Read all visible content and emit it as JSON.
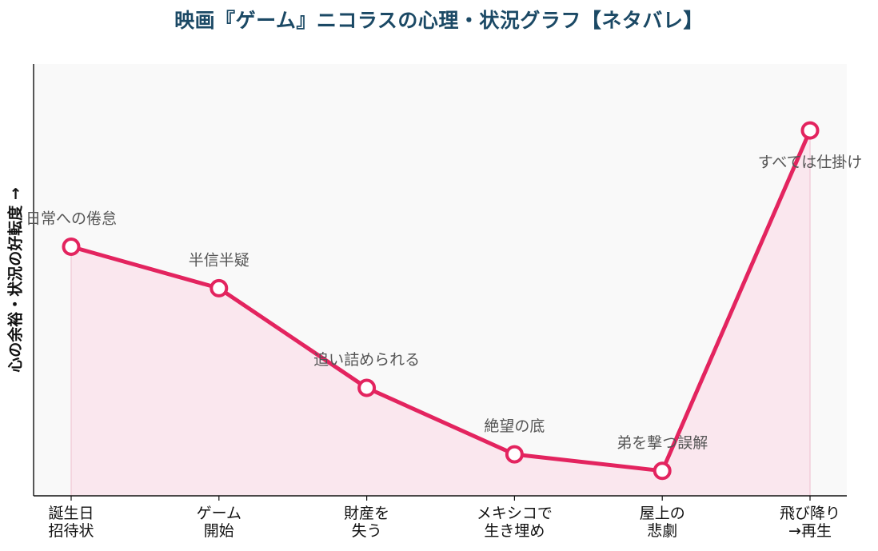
{
  "chart_data": {
    "type": "line",
    "title": "映画『ゲーム』ニコラスの心理・状況グラフ【ネタバレ】",
    "xlabel": "",
    "ylabel": "心の余裕・状況の好転度 →",
    "categories": [
      [
        "誕生日",
        "招待状"
      ],
      [
        "ゲーム",
        "開始"
      ],
      [
        "財産を",
        "失う"
      ],
      [
        "メキシコで",
        "生き埋め"
      ],
      [
        "屋上の",
        "悲劇"
      ],
      [
        "飛び降り",
        "→再生"
      ]
    ],
    "values": [
      60,
      50,
      26,
      10,
      6,
      88
    ],
    "annotations": [
      "日常への倦怠",
      "半信半疑",
      "追い詰められる",
      "絶望の底",
      "弟を撃つ誤解",
      "すべては仕掛け"
    ],
    "ylim": [
      0,
      104
    ],
    "grid": false,
    "colors": {
      "line": "#e3245f",
      "fill": "#f9e4ec",
      "plot_bg": "#f9f9f9",
      "title": "#1b4965",
      "annotation": "#555555"
    }
  }
}
